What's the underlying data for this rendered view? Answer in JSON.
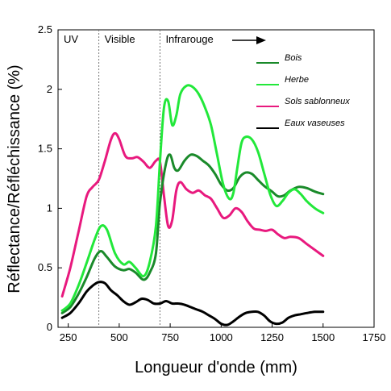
{
  "chart_data": {
    "type": "line",
    "title": "",
    "xlabel": "Longueur d'onde (mm)",
    "ylabel": "Réflectance/Réfléchissance (%)",
    "xlim": [
      200,
      1750
    ],
    "ylim": [
      0,
      2.5
    ],
    "xticks": [
      250,
      500,
      750,
      1000,
      1250,
      1500,
      1750
    ],
    "xtick_labels": [
      "250",
      "500",
      "750",
      "1000",
      "1250",
      "1500",
      "1750"
    ],
    "yticks": [
      0,
      0.5,
      1,
      1.5,
      2,
      2.5
    ],
    "ytick_labels": [
      "0",
      "0.5",
      "1",
      "1.5",
      "2",
      "2.5"
    ],
    "grid": false,
    "legend_position": "top-right",
    "regions": [
      {
        "label": "UV",
        "from": 200,
        "to": 400
      },
      {
        "label": "Visible",
        "from": 400,
        "to": 700
      },
      {
        "label": "Infrarouge",
        "from": 700,
        "to": 1750
      }
    ],
    "region_boundaries": [
      400,
      700
    ],
    "series": [
      {
        "name": "Bois",
        "color": "#1a8a2a",
        "x": [
          220,
          260,
          300,
          340,
          380,
          410,
          440,
          480,
          520,
          550,
          580,
          620,
          650,
          680,
          700,
          730,
          750,
          770,
          790,
          820,
          850,
          880,
          910,
          940,
          970,
          1000,
          1030,
          1060,
          1090,
          1120,
          1150,
          1180,
          1210,
          1250,
          1280,
          1310,
          1340,
          1380,
          1420,
          1460,
          1500
        ],
        "y": [
          0.12,
          0.17,
          0.28,
          0.42,
          0.58,
          0.64,
          0.59,
          0.51,
          0.48,
          0.49,
          0.46,
          0.4,
          0.46,
          0.62,
          1.05,
          1.38,
          1.45,
          1.34,
          1.32,
          1.4,
          1.45,
          1.44,
          1.4,
          1.36,
          1.29,
          1.2,
          1.15,
          1.17,
          1.26,
          1.3,
          1.29,
          1.24,
          1.19,
          1.14,
          1.1,
          1.11,
          1.15,
          1.18,
          1.17,
          1.14,
          1.12
        ]
      },
      {
        "name": "Herbe",
        "color": "#22e83a",
        "x": [
          220,
          260,
          300,
          340,
          380,
          410,
          440,
          480,
          520,
          550,
          580,
          620,
          650,
          680,
          700,
          720,
          740,
          760,
          780,
          800,
          830,
          860,
          890,
          920,
          950,
          980,
          1010,
          1040,
          1060,
          1080,
          1100,
          1120,
          1150,
          1180,
          1210,
          1240,
          1270,
          1300,
          1330,
          1360,
          1390,
          1420,
          1460,
          1500
        ],
        "y": [
          0.14,
          0.2,
          0.35,
          0.54,
          0.74,
          0.85,
          0.82,
          0.62,
          0.53,
          0.55,
          0.5,
          0.43,
          0.55,
          0.85,
          1.4,
          1.85,
          1.9,
          1.7,
          1.78,
          1.96,
          2.03,
          2.02,
          1.96,
          1.85,
          1.7,
          1.45,
          1.2,
          1.08,
          1.13,
          1.35,
          1.55,
          1.6,
          1.58,
          1.48,
          1.3,
          1.12,
          1.02,
          1.06,
          1.13,
          1.16,
          1.12,
          1.06,
          1.0,
          0.96
        ]
      },
      {
        "name": "Sols sablonneux",
        "color": "#e8197e",
        "x": [
          220,
          260,
          300,
          340,
          370,
          400,
          430,
          460,
          480,
          500,
          530,
          560,
          590,
          620,
          650,
          680,
          700,
          720,
          740,
          760,
          780,
          800,
          830,
          860,
          890,
          920,
          950,
          980,
          1010,
          1040,
          1070,
          1100,
          1130,
          1160,
          1190,
          1220,
          1250,
          1280,
          1310,
          1340,
          1380,
          1420,
          1460,
          1500
        ],
        "y": [
          0.26,
          0.5,
          0.8,
          1.1,
          1.18,
          1.24,
          1.4,
          1.58,
          1.63,
          1.58,
          1.44,
          1.42,
          1.43,
          1.39,
          1.34,
          1.4,
          1.39,
          1.1,
          0.85,
          0.9,
          1.15,
          1.22,
          1.16,
          1.13,
          1.15,
          1.11,
          1.08,
          1.0,
          0.92,
          0.94,
          1.0,
          0.97,
          0.89,
          0.83,
          0.82,
          0.81,
          0.82,
          0.78,
          0.75,
          0.76,
          0.75,
          0.7,
          0.65,
          0.6
        ]
      },
      {
        "name": "Eaux vaseuses",
        "color": "#000000",
        "x": [
          220,
          260,
          300,
          340,
          370,
          400,
          430,
          460,
          490,
          520,
          550,
          580,
          610,
          640,
          670,
          700,
          730,
          760,
          790,
          820,
          850,
          880,
          910,
          940,
          970,
          1000,
          1030,
          1060,
          1090,
          1120,
          1150,
          1180,
          1210,
          1240,
          1270,
          1300,
          1330,
          1360,
          1390,
          1420,
          1460,
          1500
        ],
        "y": [
          0.08,
          0.12,
          0.2,
          0.3,
          0.35,
          0.38,
          0.37,
          0.31,
          0.27,
          0.22,
          0.19,
          0.21,
          0.24,
          0.23,
          0.2,
          0.2,
          0.22,
          0.2,
          0.2,
          0.19,
          0.17,
          0.15,
          0.13,
          0.1,
          0.07,
          0.03,
          0.02,
          0.05,
          0.09,
          0.12,
          0.13,
          0.13,
          0.1,
          0.05,
          0.03,
          0.04,
          0.08,
          0.1,
          0.11,
          0.12,
          0.13,
          0.13
        ]
      }
    ]
  }
}
